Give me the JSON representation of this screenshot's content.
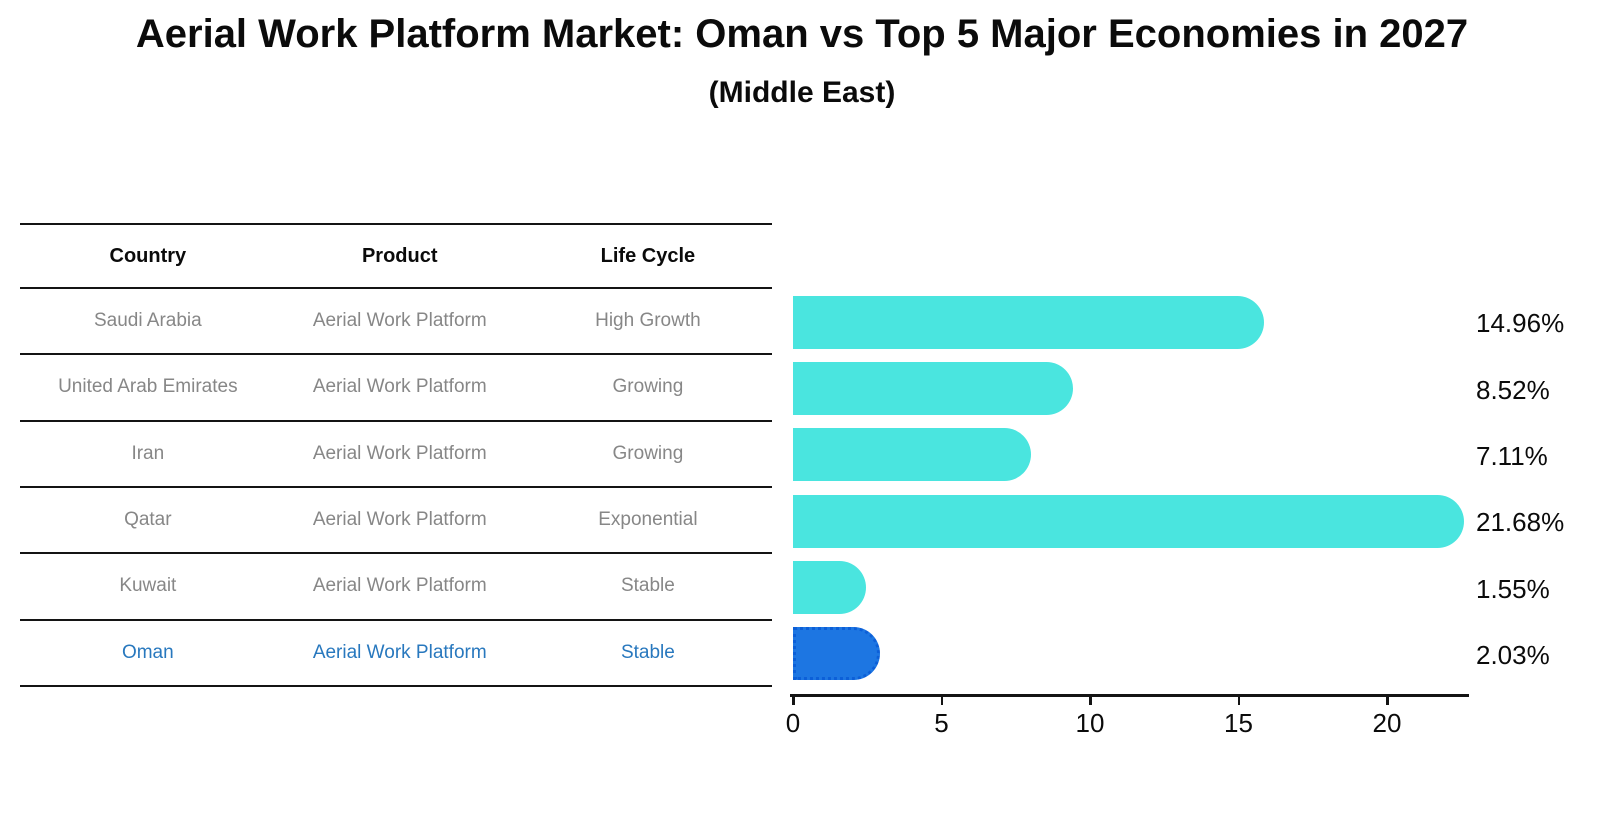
{
  "title": "Aerial Work Platform Market: Oman vs Top 5 Major Economies in 2027",
  "subtitle": "(Middle East)",
  "table": {
    "headers": [
      "Country",
      "Product",
      "Life Cycle"
    ],
    "rows": [
      {
        "country": "Saudi Arabia",
        "product": "Aerial Work Platform",
        "life_cycle": "High Growth",
        "highlight": false
      },
      {
        "country": "United Arab Emirates",
        "product": "Aerial Work Platform",
        "life_cycle": "Growing",
        "highlight": false
      },
      {
        "country": "Iran",
        "product": "Aerial Work Platform",
        "life_cycle": "Growing",
        "highlight": false
      },
      {
        "country": "Qatar",
        "product": "Aerial Work Platform",
        "life_cycle": "Exponential",
        "highlight": false
      },
      {
        "country": "Kuwait",
        "product": "Aerial Work Platform",
        "life_cycle": "Stable",
        "highlight": false
      },
      {
        "country": "Oman",
        "product": "Aerial Work Platform",
        "life_cycle": "Stable",
        "highlight": true
      }
    ]
  },
  "chart_data": {
    "type": "bar",
    "orientation": "horizontal",
    "title": "Aerial Work Platform Market: Oman vs Top 5 Major Economies in 2027 (Middle East)",
    "categories": [
      "Saudi Arabia",
      "United Arab Emirates",
      "Iran",
      "Qatar",
      "Kuwait",
      "Oman"
    ],
    "values": [
      14.96,
      8.52,
      7.11,
      21.68,
      1.55,
      2.03
    ],
    "value_labels": [
      "14.96%",
      "8.52%",
      "7.11%",
      "21.68%",
      "1.55%",
      "2.03%"
    ],
    "x_ticks": [
      0,
      5,
      10,
      15,
      20
    ],
    "xlim": [
      0,
      22.7
    ],
    "grid": false,
    "legend": "none",
    "highlight_index": 5,
    "colors": {
      "bar": "#4AE5DF",
      "highlight_bar": "#1D76E2",
      "highlight_border": "#0C5FD8",
      "highlight_text": "#2878BE",
      "row_text": "#878787",
      "axis": "#141414"
    }
  }
}
